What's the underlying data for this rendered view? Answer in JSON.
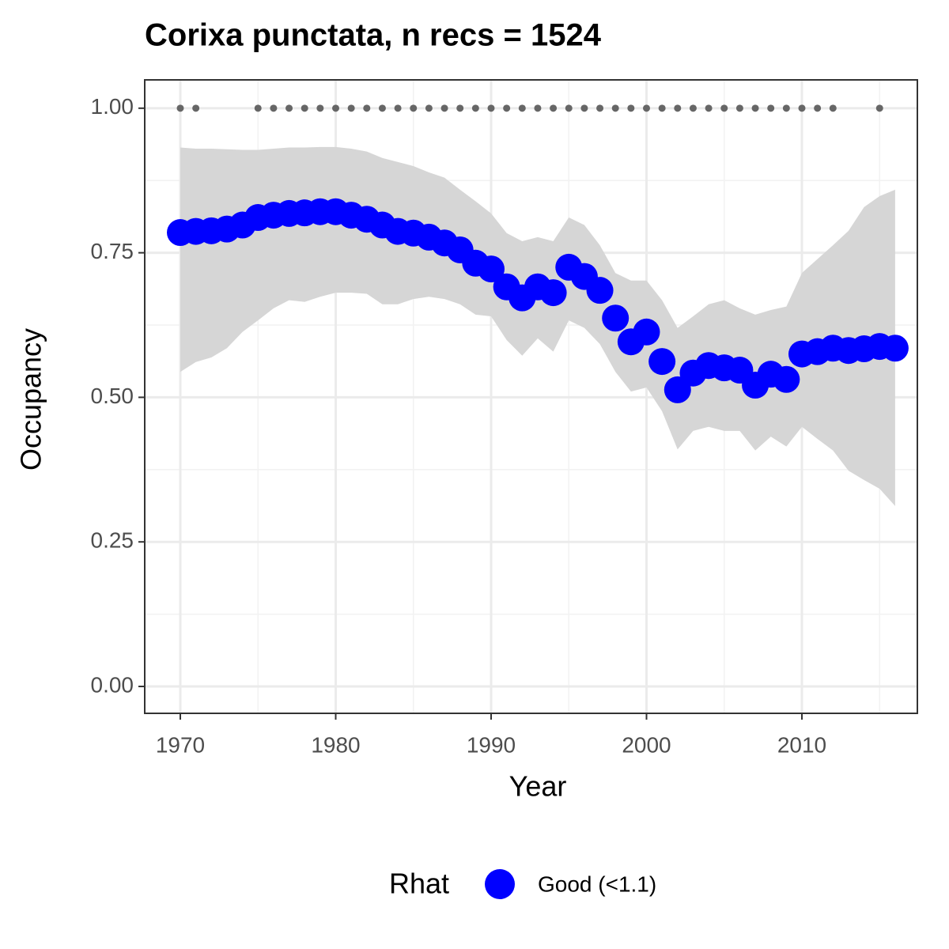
{
  "chart_data": {
    "type": "scatter",
    "title": "Corixa punctata, n recs = 1524",
    "x_label": "Year",
    "y_label": "Occupancy",
    "x": [
      1970,
      1971,
      1972,
      1973,
      1974,
      1975,
      1976,
      1977,
      1978,
      1979,
      1980,
      1981,
      1982,
      1983,
      1984,
      1985,
      1986,
      1987,
      1988,
      1989,
      1990,
      1991,
      1992,
      1993,
      1994,
      1995,
      1996,
      1997,
      1998,
      1999,
      2000,
      2001,
      2002,
      2003,
      2004,
      2005,
      2006,
      2007,
      2008,
      2009,
      2010,
      2011,
      2012,
      2013,
      2014,
      2015,
      2016
    ],
    "series": [
      {
        "name": "Good (<1.1)",
        "color": "#0000ff",
        "band_color": "#d6d6d6",
        "values": [
          0.785,
          0.787,
          0.788,
          0.791,
          0.798,
          0.811,
          0.815,
          0.818,
          0.819,
          0.821,
          0.821,
          0.815,
          0.808,
          0.798,
          0.787,
          0.784,
          0.777,
          0.767,
          0.755,
          0.732,
          0.722,
          0.691,
          0.672,
          0.691,
          0.681,
          0.725,
          0.709,
          0.685,
          0.637,
          0.596,
          0.613,
          0.562,
          0.513,
          0.542,
          0.555,
          0.551,
          0.547,
          0.521,
          0.54,
          0.531,
          0.575,
          0.579,
          0.585,
          0.581,
          0.584,
          0.588,
          0.585
        ],
        "upper": [
          0.932,
          0.93,
          0.93,
          0.929,
          0.928,
          0.928,
          0.93,
          0.932,
          0.932,
          0.933,
          0.933,
          0.93,
          0.925,
          0.914,
          0.907,
          0.9,
          0.889,
          0.88,
          0.859,
          0.839,
          0.818,
          0.784,
          0.77,
          0.777,
          0.77,
          0.811,
          0.798,
          0.763,
          0.715,
          0.702,
          0.702,
          0.668,
          0.62,
          0.64,
          0.661,
          0.668,
          0.654,
          0.643,
          0.651,
          0.657,
          0.715,
          0.739,
          0.763,
          0.788,
          0.829,
          0.848,
          0.859
        ],
        "lower": [
          0.544,
          0.561,
          0.569,
          0.585,
          0.613,
          0.633,
          0.654,
          0.668,
          0.665,
          0.674,
          0.681,
          0.681,
          0.679,
          0.661,
          0.661,
          0.67,
          0.674,
          0.67,
          0.661,
          0.643,
          0.64,
          0.599,
          0.572,
          0.602,
          0.579,
          0.633,
          0.62,
          0.592,
          0.544,
          0.51,
          0.517,
          0.476,
          0.41,
          0.442,
          0.449,
          0.442,
          0.442,
          0.408,
          0.432,
          0.415,
          0.449,
          0.428,
          0.408,
          0.373,
          0.357,
          0.342,
          0.312
        ]
      }
    ],
    "record_points": {
      "color": "#666666",
      "x": [
        1970,
        1971,
        1975,
        1976,
        1977,
        1978,
        1979,
        1980,
        1981,
        1982,
        1983,
        1984,
        1985,
        1986,
        1987,
        1988,
        1989,
        1990,
        1991,
        1992,
        1993,
        1994,
        1995,
        1996,
        1997,
        1998,
        1999,
        2000,
        2001,
        2002,
        2003,
        2004,
        2005,
        2006,
        2007,
        2008,
        2009,
        2010,
        2011,
        2012,
        2015
      ],
      "values": [
        1,
        1,
        1,
        1,
        1,
        1,
        1,
        1,
        1,
        1,
        1,
        1,
        1,
        1,
        1,
        1,
        1,
        1,
        1,
        1,
        1,
        1,
        1,
        1,
        1,
        1,
        1,
        1,
        1,
        1,
        1,
        1,
        1,
        1,
        1,
        1,
        1,
        1,
        1,
        1,
        1
      ]
    },
    "xlim": [
      1967.71,
      2017.43
    ],
    "ylim": [
      -0.0465,
      1.049
    ],
    "xticks": [
      1970,
      1980,
      1990,
      2000,
      2010
    ],
    "yticks": [
      {
        "value": 0,
        "label": "0.00"
      },
      {
        "value": 0.25,
        "label": "0.25"
      },
      {
        "value": 0.5,
        "label": "0.50"
      },
      {
        "value": 0.75,
        "label": "0.75"
      },
      {
        "value": 1,
        "label": "1.00"
      }
    ],
    "grid": true,
    "legend_title": "Rhat",
    "legend_position": "bottom"
  }
}
